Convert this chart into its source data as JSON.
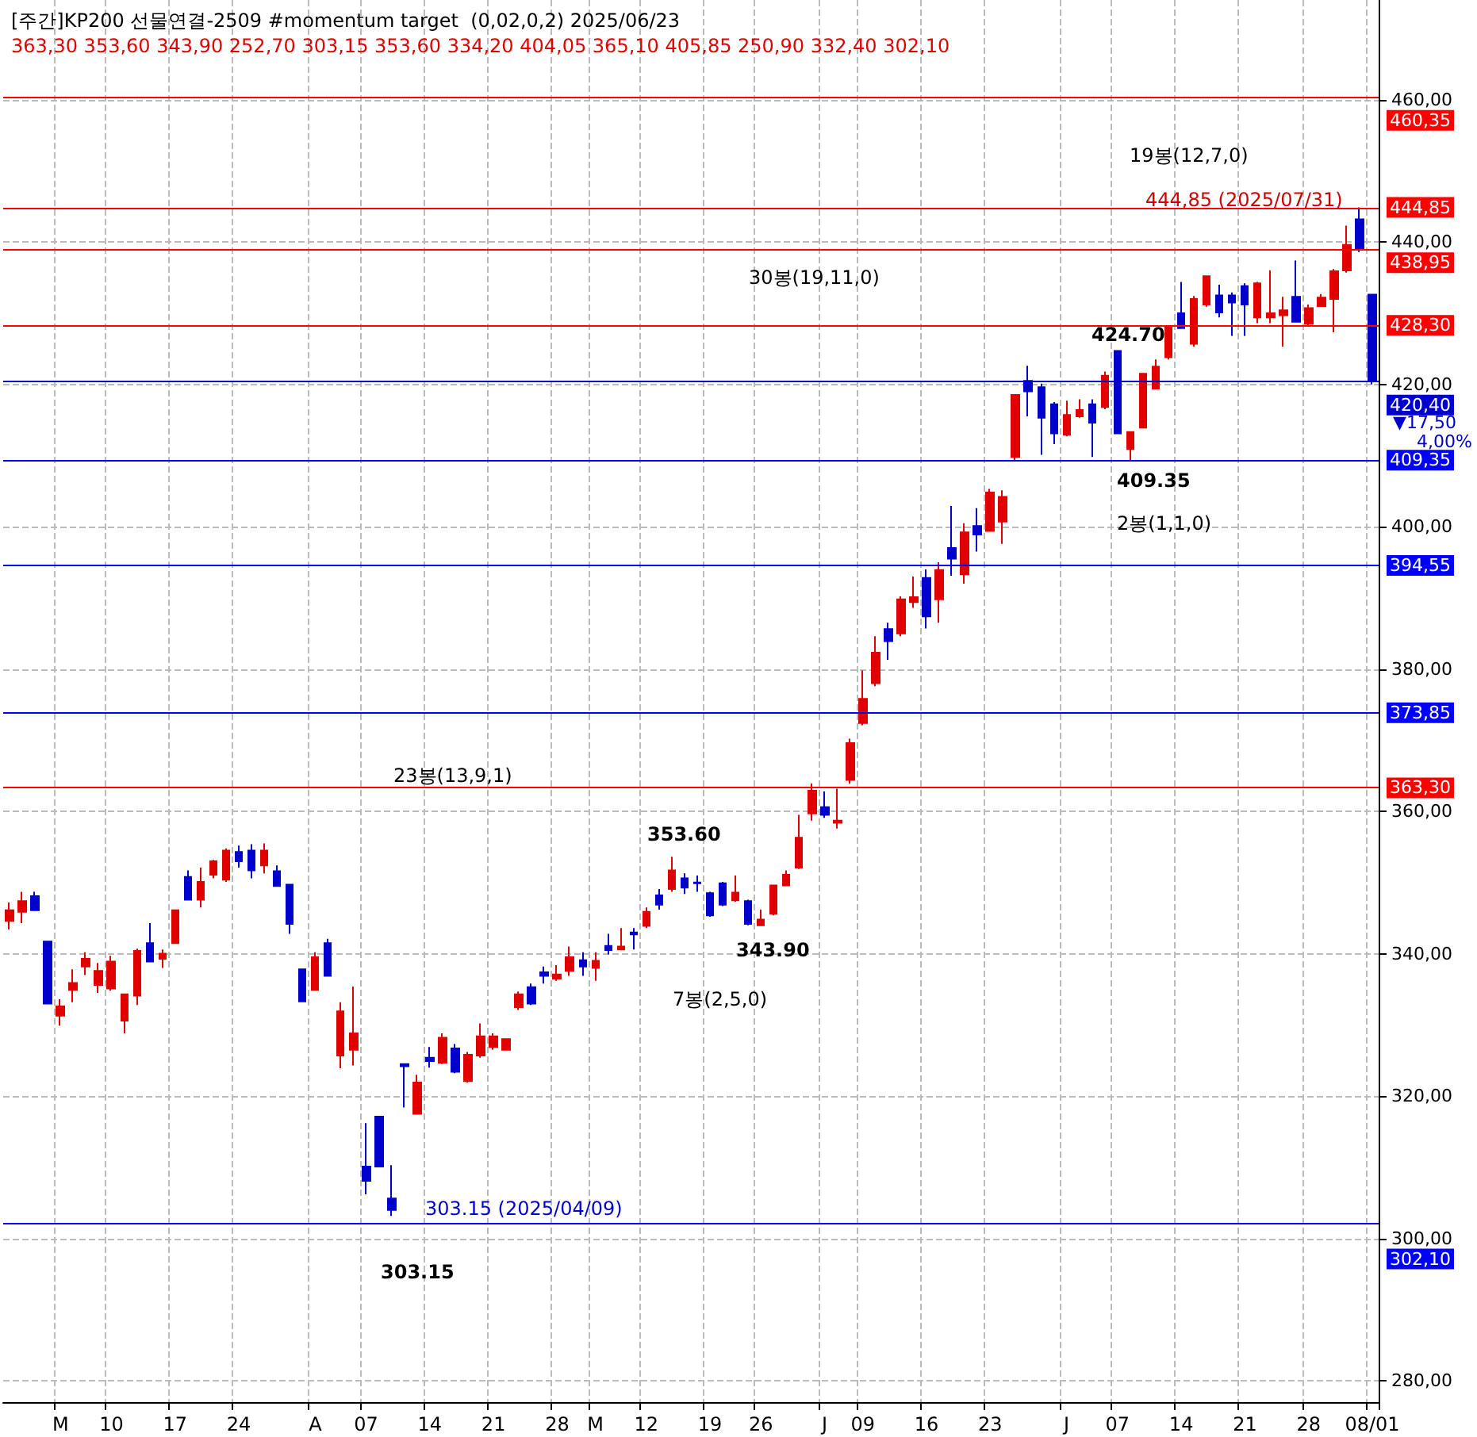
{
  "chart_data": {
    "type": "candlestick",
    "title": "[주간]KP200 선물연결-2509 #momentum target  (0,02,0,2) 2025/06/23",
    "subtitle": "363,30 353,60 343,90 252,70 303,15 353,60 334,20 404,05 365,10 405,85 250,90 332,40 302,10",
    "categories": [
      null,
      null,
      null,
      null,
      "M",
      null,
      null,
      null,
      "10",
      null,
      null,
      null,
      null,
      "17",
      null,
      null,
      null,
      null,
      "24",
      null,
      null,
      null,
      null,
      null,
      "A",
      null,
      null,
      null,
      "07",
      null,
      null,
      null,
      null,
      "14",
      null,
      null,
      null,
      null,
      "21",
      null,
      null,
      null,
      null,
      "28",
      null,
      null,
      "M",
      null,
      null,
      null,
      "12",
      null,
      null,
      null,
      null,
      "19",
      null,
      null,
      null,
      "26",
      null,
      null,
      null,
      null,
      "J",
      null,
      null,
      "09",
      null,
      null,
      null,
      null,
      "16",
      null,
      null,
      null,
      null,
      "23",
      null,
      null,
      null,
      null,
      null,
      "J",
      null,
      null,
      null,
      "07",
      null,
      null,
      null,
      null,
      "14",
      null,
      null,
      null,
      null,
      "21",
      null,
      null,
      null,
      null,
      "28",
      null,
      null,
      null,
      null,
      "08/01"
    ],
    "ohlc": [
      [
        344.6,
        347.2,
        343.4,
        346.1
      ],
      [
        345.9,
        348.7,
        344.3,
        347.4
      ],
      [
        348.1,
        348.7,
        346.1,
        346.1
      ],
      [
        341.7,
        341.7,
        333.0,
        333.0
      ],
      [
        331.3,
        333.6,
        329.9,
        332.6
      ],
      [
        334.9,
        337.8,
        333.2,
        335.9
      ],
      [
        338.2,
        340.2,
        337.0,
        339.3
      ],
      [
        335.6,
        338.7,
        334.5,
        337.6
      ],
      [
        335.1,
        339.7,
        334.8,
        338.9
      ],
      [
        330.6,
        334.3,
        328.8,
        334.3
      ],
      [
        334.1,
        340.7,
        332.8,
        340.4
      ],
      [
        341.5,
        344.3,
        338.9,
        338.9
      ],
      [
        339.3,
        340.6,
        338.0,
        340.0
      ],
      [
        341.5,
        346.1,
        341.5,
        346.1
      ],
      [
        350.8,
        351.7,
        347.6,
        347.6
      ],
      [
        347.6,
        352.1,
        346.5,
        350.1
      ],
      [
        351.1,
        353.2,
        350.6,
        353.0
      ],
      [
        350.4,
        354.8,
        350.1,
        354.5
      ],
      [
        354.3,
        355.2,
        352.1,
        353.0
      ],
      [
        354.5,
        355.4,
        350.6,
        351.7
      ],
      [
        352.4,
        355.5,
        351.3,
        354.5
      ],
      [
        351.6,
        352.4,
        349.5,
        349.5
      ],
      [
        349.7,
        349.7,
        342.8,
        344.2
      ],
      [
        337.8,
        337.8,
        333.3,
        333.3
      ],
      [
        334.9,
        340.2,
        334.9,
        339.5
      ],
      [
        341.5,
        342.1,
        336.9,
        336.9
      ],
      [
        325.7,
        333.2,
        323.9,
        331.9
      ],
      [
        326.5,
        335.4,
        324.3,
        328.8
      ],
      [
        310.1,
        316.2,
        306.2,
        308.1
      ],
      [
        317.1,
        317.1,
        310.1,
        310.1
      ],
      [
        305.6,
        310.3,
        303.15,
        304.0
      ],
      [
        324.5,
        324.5,
        318.4,
        324.2
      ],
      [
        317.5,
        323.0,
        317.5,
        321.9
      ],
      [
        325.4,
        326.9,
        324.0,
        324.9
      ],
      [
        324.7,
        328.8,
        324.5,
        328.2
      ],
      [
        326.7,
        327.3,
        323.2,
        323.4
      ],
      [
        322.1,
        326.2,
        321.9,
        325.8
      ],
      [
        325.7,
        330.2,
        325.4,
        328.4
      ],
      [
        326.9,
        328.8,
        326.5,
        328.4
      ],
      [
        326.5,
        328.0,
        326.5,
        328.0
      ],
      [
        332.5,
        334.7,
        332.1,
        334.3
      ],
      [
        335.3,
        335.8,
        332.8,
        333.0
      ],
      [
        337.4,
        338.2,
        335.8,
        336.9
      ],
      [
        336.5,
        338.4,
        336.2,
        337.1
      ],
      [
        337.6,
        341.0,
        336.9,
        339.5
      ],
      [
        339.1,
        340.2,
        336.9,
        338.2
      ],
      [
        338.0,
        340.2,
        336.2,
        339.0
      ],
      [
        341.1,
        342.8,
        339.9,
        340.5
      ],
      [
        340.6,
        343.6,
        340.6,
        341.0
      ],
      [
        343.0,
        343.6,
        340.6,
        342.7
      ],
      [
        343.9,
        346.5,
        343.6,
        345.9
      ],
      [
        348.2,
        349.1,
        346.2,
        346.9
      ],
      [
        349.1,
        353.6,
        348.7,
        351.7
      ],
      [
        350.6,
        351.3,
        348.4,
        349.3
      ],
      [
        350.0,
        351.0,
        348.7,
        349.9
      ],
      [
        348.5,
        348.7,
        345.2,
        345.4
      ],
      [
        349.9,
        350.1,
        346.7,
        346.9
      ],
      [
        347.5,
        351.0,
        347.3,
        348.6
      ],
      [
        347.4,
        347.6,
        344.0,
        344.2
      ],
      [
        344.0,
        346.2,
        343.9,
        344.8
      ],
      [
        345.6,
        349.6,
        345.4,
        349.6
      ],
      [
        349.6,
        351.7,
        349.5,
        351.1
      ],
      [
        352.1,
        359.5,
        351.9,
        356.3
      ],
      [
        359.7,
        363.9,
        358.7,
        362.9
      ],
      [
        360.6,
        362.8,
        359.1,
        359.5
      ],
      [
        358.4,
        363.2,
        357.6,
        358.7
      ],
      [
        364.4,
        370.2,
        363.9,
        369.6
      ],
      [
        372.4,
        379.8,
        372.1,
        375.8
      ],
      [
        378.0,
        384.6,
        377.6,
        382.3
      ],
      [
        385.6,
        386.5,
        381.3,
        383.9
      ],
      [
        385.0,
        390.2,
        384.6,
        389.8
      ],
      [
        389.4,
        393.0,
        388.6,
        390.1
      ],
      [
        392.8,
        394.0,
        385.7,
        387.4
      ],
      [
        389.8,
        395.0,
        386.5,
        393.9
      ],
      [
        397.0,
        402.9,
        393.1,
        395.5
      ],
      [
        393.3,
        400.5,
        392.0,
        399.2
      ],
      [
        400.1,
        402.6,
        396.5,
        398.9
      ],
      [
        399.4,
        405.3,
        399.4,
        404.8
      ],
      [
        400.7,
        405.1,
        397.6,
        404.2
      ],
      [
        409.8,
        418.5,
        409.3,
        418.5
      ],
      [
        420.5,
        422.6,
        415.5,
        419.0
      ],
      [
        419.6,
        420.1,
        410.1,
        415.3
      ],
      [
        417.2,
        417.5,
        411.6,
        413.1
      ],
      [
        412.9,
        417.7,
        412.7,
        415.7
      ],
      [
        415.5,
        417.9,
        415.3,
        416.4
      ],
      [
        417.2,
        417.9,
        409.8,
        414.6
      ],
      [
        416.8,
        421.8,
        416.5,
        421.2
      ],
      [
        424.7,
        424.7,
        413.1,
        413.1
      ],
      [
        410.9,
        413.3,
        409.35,
        413.3
      ],
      [
        413.9,
        421.6,
        413.9,
        421.5
      ],
      [
        419.4,
        423.5,
        419.4,
        422.5
      ],
      [
        423.8,
        428.3,
        423.5,
        428.0
      ],
      [
        430.0,
        434.4,
        427.9,
        427.9
      ],
      [
        425.7,
        432.4,
        425.3,
        432.0
      ],
      [
        431.2,
        435.3,
        430.9,
        435.2
      ],
      [
        432.5,
        434.0,
        429.4,
        430.1
      ],
      [
        432.5,
        432.9,
        426.8,
        431.5
      ],
      [
        433.8,
        434.2,
        426.8,
        431.2
      ],
      [
        429.4,
        434.4,
        428.6,
        434.2
      ],
      [
        429.4,
        436.0,
        428.6,
        430.0
      ],
      [
        429.7,
        432.3,
        425.3,
        430.4
      ],
      [
        432.3,
        437.4,
        428.8,
        428.8
      ],
      [
        428.5,
        431.2,
        428.3,
        430.7
      ],
      [
        431.0,
        432.7,
        430.9,
        432.2
      ],
      [
        432.0,
        436.2,
        427.3,
        435.9
      ],
      [
        436.0,
        442.3,
        435.7,
        439.6
      ],
      [
        443.2,
        444.85,
        438.6,
        439.0
      ],
      [
        432.6,
        432.6,
        420.0,
        420.4
      ]
    ],
    "colors": [
      "#e00000",
      "#e00000",
      "#0000cc",
      "#0000cc",
      "#e00000",
      "#e00000",
      "#e00000",
      "#e00000",
      "#e00000",
      "#e00000",
      "#e00000",
      "#0000cc",
      "#e00000",
      "#e00000",
      "#0000cc",
      "#e00000",
      "#e00000",
      "#e00000",
      "#0000cc",
      "#0000cc",
      "#e00000",
      "#0000cc",
      "#0000cc",
      "#0000cc",
      "#e00000",
      "#0000cc",
      "#e00000",
      "#e00000",
      "#0000cc",
      "#0000cc",
      "#0000cc",
      "#0000cc",
      "#e00000",
      "#0000cc",
      "#e00000",
      "#0000cc",
      "#e00000",
      "#e00000",
      "#e00000",
      "#e00000",
      "#e00000",
      "#0000cc",
      "#0000cc",
      "#e00000",
      "#e00000",
      "#0000cc",
      "#e00000",
      "#0000cc",
      "#e00000",
      "#0000cc",
      "#e00000",
      "#0000cc",
      "#e00000",
      "#0000cc",
      "#0000cc",
      "#0000cc",
      "#0000cc",
      "#e00000",
      "#0000cc",
      "#e00000",
      "#e00000",
      "#e00000",
      "#e00000",
      "#e00000",
      "#0000cc",
      "#e00000",
      "#e00000",
      "#e00000",
      "#e00000",
      "#0000cc",
      "#e00000",
      "#e00000",
      "#0000cc",
      "#e00000",
      "#0000cc",
      "#e00000",
      "#0000cc",
      "#e00000",
      "#e00000",
      "#e00000",
      "#0000cc",
      "#0000cc",
      "#0000cc",
      "#e00000",
      "#e00000",
      "#0000cc",
      "#e00000",
      "#0000cc",
      "#e00000",
      "#e00000",
      "#e00000",
      "#e00000",
      "#0000cc",
      "#e00000",
      "#e00000",
      "#0000cc",
      "#0000cc",
      "#0000cc",
      "#e00000",
      "#e00000",
      "#e00000",
      "#0000cc",
      "#e00000",
      "#e00000",
      "#e00000",
      "#e00000",
      "#0000cc",
      "#0000cc"
    ],
    "ylim": [
      277,
      474
    ],
    "yticks": [
      {
        "value": 280,
        "label": "280,00"
      },
      {
        "value": 300,
        "label": "300,00"
      },
      {
        "value": 320,
        "label": "320,00"
      },
      {
        "value": 340,
        "label": "340,00"
      },
      {
        "value": 360,
        "label": "360,00"
      },
      {
        "value": 380,
        "label": "380,00"
      },
      {
        "value": 400,
        "label": "400,00"
      },
      {
        "value": 420,
        "label": "420,00"
      },
      {
        "value": 440,
        "label": "440,00"
      },
      {
        "value": 460,
        "label": "460,00"
      }
    ],
    "grid": true,
    "ref_lines": [
      {
        "axis": "y",
        "value": 460.35,
        "label": "460,35",
        "color": "#ff0000"
      },
      {
        "axis": "y",
        "value": 444.85,
        "label": "444,85",
        "color": "#ff0000"
      },
      {
        "axis": "y",
        "value": 438.95,
        "label": "438,95",
        "color": "#ff0000"
      },
      {
        "axis": "y",
        "value": 428.3,
        "label": "428,30",
        "color": "#ff0000"
      },
      {
        "axis": "y",
        "value": 420.4,
        "label": "420,40",
        "color": "#0000cc"
      },
      {
        "axis": "y",
        "value": 409.35,
        "label": "409,35",
        "color": "#0000ff"
      },
      {
        "axis": "y",
        "value": 394.55,
        "label": "394,55",
        "color": "#0000ff"
      },
      {
        "axis": "y",
        "value": 373.85,
        "label": "373,85",
        "color": "#0000ff"
      },
      {
        "axis": "y",
        "value": 363.3,
        "label": "363,30",
        "color": "#ff0000"
      },
      {
        "axis": "y",
        "value": 302.1,
        "label": "302,10",
        "color": "#0000ff"
      }
    ],
    "annotations": [
      "23봉(13,9,1)",
      "353.60",
      "343.90",
      "7봉(2,5,0)",
      "30봉(19,11,0)",
      "424.70",
      "409.35",
      "2봉(1,1,0)",
      "19봉(12,7,0)",
      "444,85 (2025/07/31)",
      "303.15 (2025/04/09)",
      "303.15",
      "▼17,50",
      "4,00%"
    ]
  }
}
